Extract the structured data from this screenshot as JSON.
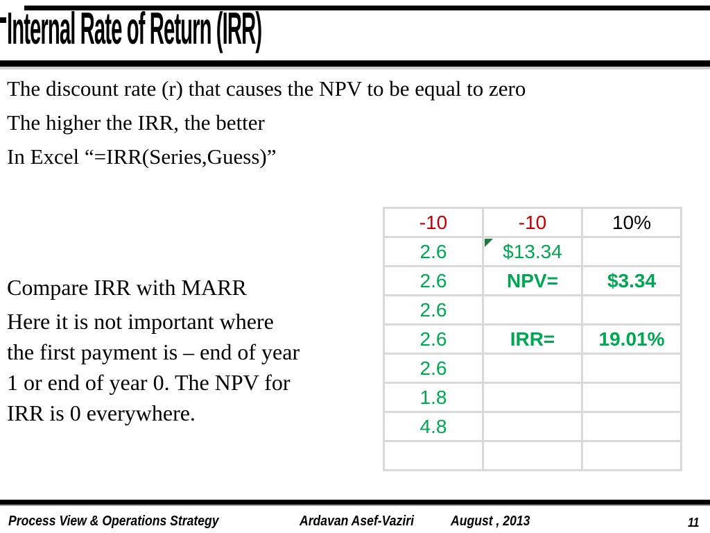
{
  "colors": {
    "bar_black": "#000000",
    "value_red": "#c00000",
    "value_green": "#00a651",
    "flag_green": "#1e7a38",
    "grid_gray": "#d9d9d9"
  },
  "title": "Internal Rate of Return (IRR)",
  "bullets": [
    "The discount rate (r) that causes the NPV to be equal to zero",
    "The higher the IRR, the better",
    "In Excel “=IRR(Series,Guess)”"
  ],
  "note": {
    "heading": "Compare IRR with MARR",
    "lines": [
      "Here it is not important where",
      "the first payment is – end of year",
      "1 or end of year 0. The NPV for",
      "IRR is 0 everywhere."
    ]
  },
  "table": {
    "rows": [
      {
        "cells": [
          {
            "t": "-10",
            "cls": "red"
          },
          {
            "t": "-10",
            "cls": "red"
          },
          {
            "t": "10%",
            "cls": "blk"
          }
        ]
      },
      {
        "cells": [
          {
            "t": "2.6",
            "cls": "green"
          },
          {
            "t": "$13.34",
            "cls": "green",
            "flag": true
          },
          {
            "t": "",
            "cls": ""
          }
        ]
      },
      {
        "cells": [
          {
            "t": "2.6",
            "cls": "green"
          },
          {
            "t": "NPV=",
            "cls": "gbr"
          },
          {
            "t": "$3.34",
            "cls": "gbl"
          }
        ]
      },
      {
        "cells": [
          {
            "t": "2.6",
            "cls": "green"
          },
          {
            "t": "",
            "cls": ""
          },
          {
            "t": "",
            "cls": ""
          }
        ]
      },
      {
        "cells": [
          {
            "t": "2.6",
            "cls": "green"
          },
          {
            "t": "IRR=",
            "cls": "gbr"
          },
          {
            "t": "19.01%",
            "cls": "gbl"
          }
        ]
      },
      {
        "cells": [
          {
            "t": "2.6",
            "cls": "green"
          },
          {
            "t": "",
            "cls": ""
          },
          {
            "t": "",
            "cls": ""
          }
        ]
      },
      {
        "cells": [
          {
            "t": "1.8",
            "cls": "green"
          },
          {
            "t": "",
            "cls": ""
          },
          {
            "t": "",
            "cls": ""
          }
        ]
      },
      {
        "cells": [
          {
            "t": "4.8",
            "cls": "green"
          },
          {
            "t": "",
            "cls": ""
          },
          {
            "t": "",
            "cls": ""
          }
        ]
      },
      {
        "cells": [
          {
            "t": "",
            "cls": ""
          },
          {
            "t": "",
            "cls": ""
          },
          {
            "t": "",
            "cls": ""
          }
        ]
      }
    ]
  },
  "footer": {
    "course": "Process View & Operations Strategy",
    "author": "Ardavan Asef-Vaziri",
    "date": "August , 2013",
    "page": "11"
  }
}
